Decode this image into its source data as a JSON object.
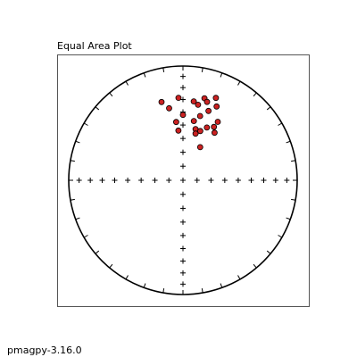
{
  "chart_data": {
    "type": "scatter",
    "projection": "equal-area stereonet",
    "title": "Equal Area Plot",
    "footer": "pmagpy-3.16.0",
    "grid": false,
    "axis_frame": true,
    "marker_color": "#cc2222",
    "marker_edge_color": "#000000",
    "series": [
      {
        "points": [
          {
            "dec": 354.8,
            "inc": 54.0
          },
          {
            "dec": 353.4,
            "inc": 47.4
          },
          {
            "dec": 349.1,
            "inc": 36.0
          },
          {
            "dec": 344.7,
            "inc": 29.7
          },
          {
            "dec": 356.9,
            "inc": 28.5
          },
          {
            "dec": 10.4,
            "inc": 46.2
          },
          {
            "dec": 14.9,
            "inc": 41.4
          },
          {
            "dec": 20.2,
            "inc": 35.6
          },
          {
            "dec": 24.5,
            "inc": 29.7
          },
          {
            "dec": 11.3,
            "inc": 33.1
          },
          {
            "dec": 14.7,
            "inc": 26.7
          },
          {
            "dec": 21.8,
            "inc": 23.4
          },
          {
            "dec": 7.8,
            "inc": 30.9
          },
          {
            "dec": 33.6,
            "inc": 48.6
          },
          {
            "dec": 30.8,
            "inc": 40.2
          },
          {
            "dec": 30.1,
            "inc": 45.1
          },
          {
            "dec": 13.8,
            "inc": 51.9
          },
          {
            "dec": 15.1,
            "inc": 55.2
          },
          {
            "dec": 0.0,
            "inc": 42.2
          },
          {
            "dec": 19.4,
            "inc": 52.3
          },
          {
            "dec": 17.1,
            "inc": 29.0
          },
          {
            "dec": 27.5,
            "inc": 63.3
          },
          {
            "dec": 24.4,
            "inc": 48.0
          }
        ]
      }
    ]
  },
  "footer": {
    "version_label": "pmagpy-3.16.0"
  }
}
